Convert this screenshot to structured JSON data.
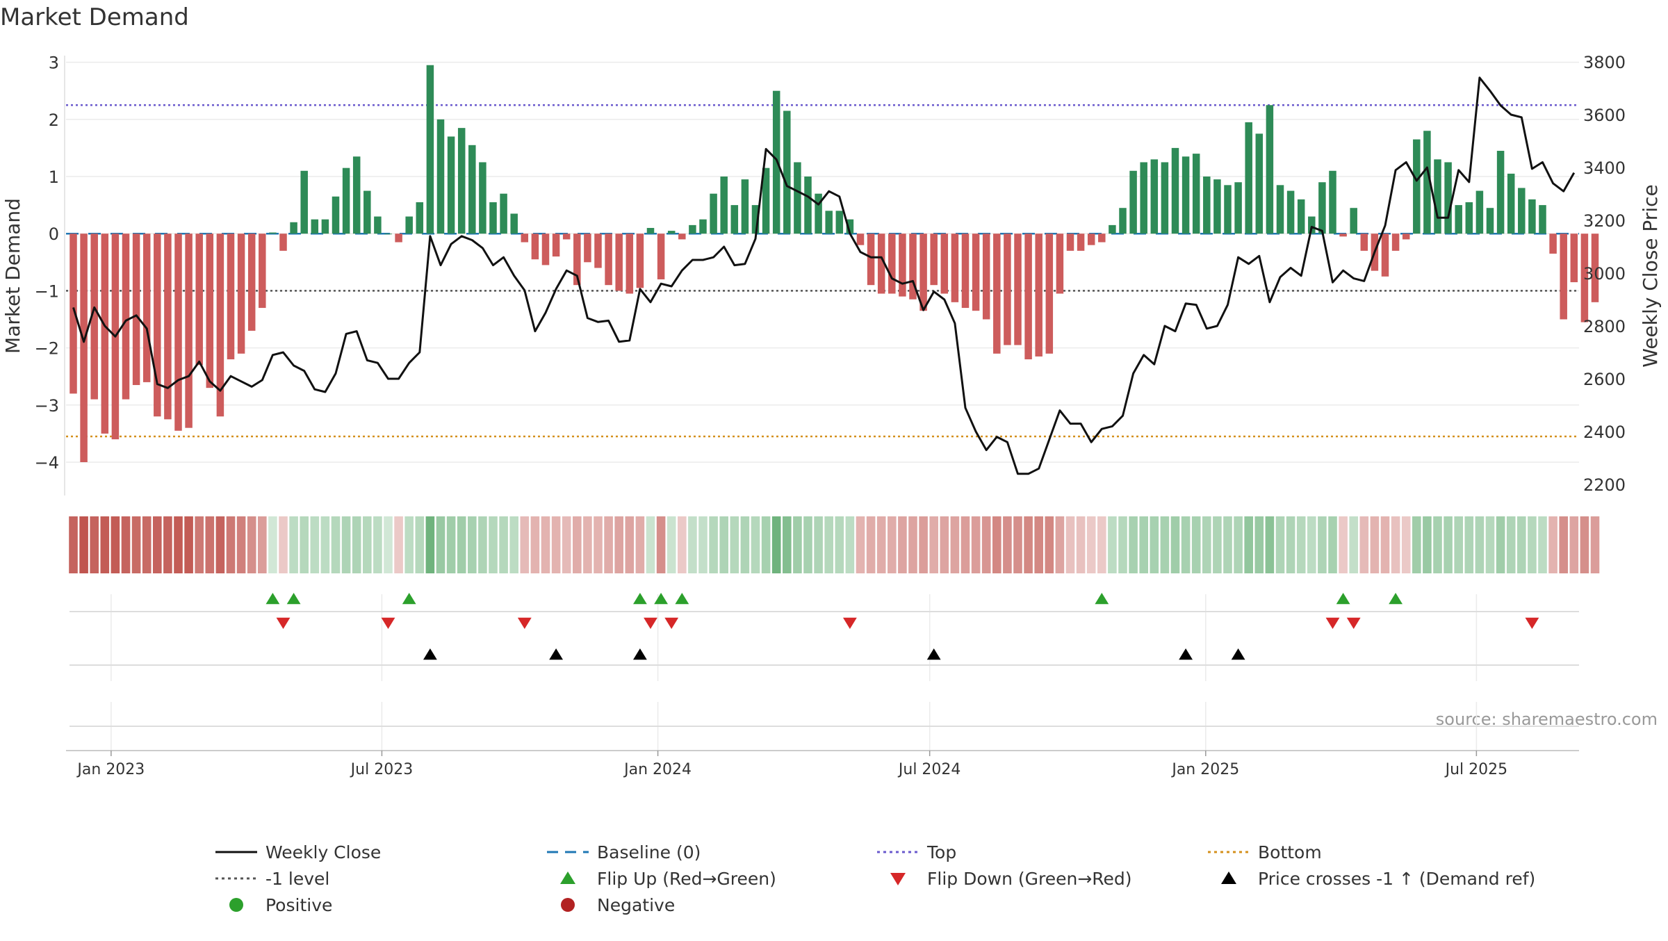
{
  "chart_data": {
    "type": "bar+line",
    "title": "Market Demand",
    "ylabel_left": "Market Demand",
    "ylabel_right": "Weekly Close Price",
    "ylim_left": [
      -4.2,
      3.3
    ],
    "ylim_right": [
      2130,
      3840
    ],
    "yticks_left": [
      -4,
      -3,
      -2,
      -1,
      0,
      1,
      2,
      3
    ],
    "yticks_right": [
      2200,
      2400,
      2600,
      2800,
      3000,
      3200,
      3400,
      3600,
      3800
    ],
    "x_dates": {
      "start": "2022-12-05",
      "weeks": 143
    },
    "x_ticks": [
      {
        "label": "Jan 2023",
        "week": 3.6
      },
      {
        "label": "Jul 2023",
        "week": 29.4
      },
      {
        "label": "Jan 2024",
        "week": 55.7
      },
      {
        "label": "Jul 2024",
        "week": 81.6
      },
      {
        "label": "Jan 2025",
        "week": 107.9
      },
      {
        "label": "Jul 2025",
        "week": 133.7
      }
    ],
    "reference_lines": {
      "top": 2.25,
      "bottom": -3.55,
      "minus_one": -1,
      "baseline": 0
    },
    "demand": [
      -2.8,
      -4,
      -2.9,
      -3.5,
      -3.6,
      -2.9,
      -2.65,
      -2.6,
      -3.2,
      -3.25,
      -3.45,
      -3.4,
      -2.3,
      -2.7,
      -3.2,
      -2.2,
      -2.1,
      -1.7,
      -1.3,
      0.02,
      -0.3,
      0.2,
      1.1,
      0.25,
      0.25,
      0.65,
      1.15,
      1.35,
      0.75,
      0.3,
      0,
      -0.15,
      0.3,
      0.55,
      2.95,
      2,
      1.7,
      1.85,
      1.55,
      1.25,
      0.55,
      0.7,
      0.35,
      -0.15,
      -0.45,
      -0.55,
      -0.4,
      -0.1,
      -0.9,
      -0.5,
      -0.6,
      -0.9,
      -1,
      -1.05,
      -0.95,
      0.1,
      -0.8,
      0.05,
      -0.1,
      0.15,
      0.25,
      0.7,
      1,
      0.5,
      0.95,
      0.5,
      1.15,
      2.5,
      2.15,
      1.25,
      1,
      0.7,
      0.4,
      0.4,
      0.25,
      -0.2,
      -0.9,
      -1.05,
      -1.05,
      -1.1,
      -1.15,
      -1.35,
      -0.9,
      -1.05,
      -1.2,
      -1.3,
      -1.35,
      -1.5,
      -2.1,
      -1.95,
      -1.95,
      -2.2,
      -2.15,
      -2.1,
      -1.05,
      -0.3,
      -0.3,
      -0.2,
      -0.15,
      0.15,
      0.45,
      1.1,
      1.25,
      1.3,
      1.25,
      1.5,
      1.35,
      1.4,
      1,
      0.95,
      0.85,
      0.9,
      1.95,
      1.75,
      2.25,
      0.85,
      0.75,
      0.6,
      0.3,
      0.9,
      1.1,
      -0.05,
      0.45,
      -0.3,
      -0.65,
      -0.75,
      -0.3,
      -0.1,
      1.65,
      1.8,
      1.3,
      1.25,
      0.5,
      0.55,
      0.75,
      0.45,
      1.45,
      1.05,
      0.8,
      0.6,
      0.5,
      -0.35,
      -1.5,
      -0.85,
      -1.55,
      -1.2
    ],
    "close": [
      2870,
      2740,
      2870,
      2800,
      2760,
      2820,
      2840,
      2790,
      2580,
      2565,
      2595,
      2610,
      2665,
      2590,
      2555,
      2610,
      2590,
      2570,
      2595,
      2690,
      2700,
      2650,
      2630,
      2560,
      2550,
      2620,
      2770,
      2780,
      2670,
      2660,
      2600,
      2600,
      2660,
      2700,
      3140,
      3030,
      3110,
      3140,
      3125,
      3095,
      3030,
      3060,
      2990,
      2935,
      2780,
      2850,
      2940,
      3010,
      2990,
      2830,
      2815,
      2820,
      2740,
      2745,
      2940,
      2890,
      2960,
      2950,
      3010,
      3050,
      3050,
      3060,
      3100,
      3030,
      3035,
      3130,
      3470,
      3430,
      3330,
      3310,
      3290,
      3260,
      3310,
      3290,
      3150,
      3080,
      3060,
      3060,
      2980,
      2960,
      2970,
      2860,
      2930,
      2900,
      2810,
      2490,
      2400,
      2330,
      2380,
      2360,
      2240,
      2240,
      2260,
      2370,
      2480,
      2430,
      2430,
      2360,
      2410,
      2420,
      2460,
      2620,
      2690,
      2655,
      2800,
      2780,
      2885,
      2880,
      2790,
      2800,
      2880,
      3060,
      3035,
      3065,
      2890,
      2985,
      3020,
      2990,
      3175,
      3160,
      2965,
      3010,
      2980,
      2970,
      3080,
      3180,
      3390,
      3420,
      3350,
      3400,
      3210,
      3210,
      3390,
      3345,
      3740,
      3690,
      3635,
      3600,
      3590,
      3395,
      3420,
      3340,
      3310,
      3380
    ],
    "color_strip": [
      0.9,
      1,
      0.9,
      0.95,
      0.95,
      0.9,
      0.85,
      0.85,
      0.9,
      0.9,
      0.95,
      0.95,
      0.75,
      0.8,
      0.9,
      0.75,
      0.7,
      0.6,
      0.5,
      0.15,
      0.2,
      0.3,
      0.35,
      0.3,
      0.3,
      0.35,
      0.4,
      0.4,
      0.35,
      0.3,
      0.15,
      0.2,
      0.3,
      0.35,
      0.85,
      0.55,
      0.5,
      0.5,
      0.45,
      0.4,
      0.35,
      0.35,
      0.3,
      0.3,
      0.35,
      0.35,
      0.35,
      0.3,
      0.4,
      0.35,
      0.35,
      0.4,
      0.45,
      0.45,
      0.4,
      0.2,
      0.6,
      0.2,
      0.2,
      0.25,
      0.25,
      0.35,
      0.4,
      0.35,
      0.4,
      0.35,
      0.45,
      0.85,
      0.7,
      0.5,
      0.45,
      0.4,
      0.35,
      0.35,
      0.3,
      0.35,
      0.4,
      0.4,
      0.4,
      0.45,
      0.45,
      0.5,
      0.4,
      0.45,
      0.45,
      0.5,
      0.5,
      0.55,
      0.65,
      0.6,
      0.6,
      0.65,
      0.65,
      0.65,
      0.45,
      0.25,
      0.25,
      0.2,
      0.2,
      0.3,
      0.35,
      0.45,
      0.45,
      0.45,
      0.45,
      0.5,
      0.45,
      0.45,
      0.4,
      0.4,
      0.4,
      0.4,
      0.6,
      0.55,
      0.65,
      0.4,
      0.4,
      0.35,
      0.3,
      0.4,
      0.45,
      0.2,
      0.25,
      0.3,
      0.35,
      0.35,
      0.25,
      0.2,
      0.5,
      0.55,
      0.45,
      0.45,
      0.4,
      0.4,
      0.4,
      0.35,
      0.5,
      0.4,
      0.4,
      0.35,
      0.3,
      0.35,
      0.6,
      0.45,
      0.6,
      0.5
    ],
    "flip_up_weeks": [
      19,
      21,
      32,
      54,
      56,
      58,
      98,
      121,
      126
    ],
    "flip_down_weeks": [
      20,
      30,
      43,
      55,
      57,
      74,
      120,
      122,
      139
    ],
    "price_cross_weeks": [
      34,
      46,
      54,
      82,
      106,
      111
    ],
    "colors": {
      "positive_bar": "#2e8b57",
      "negative_bar": "#cd5c5c",
      "close_line": "#111111",
      "baseline": "#1f77b4",
      "top_line": "#6a5acd",
      "bottom_line": "#d4901c",
      "minus_one_line": "#555555",
      "flip_up": "#2ca02c",
      "flip_down": "#d62728",
      "cross_marker": "#000000",
      "strip_green": "#5aa86a",
      "strip_red": "#c0554f"
    },
    "source": "source: sharemaestro.com",
    "legend": [
      {
        "key": "weekly_close",
        "label": "Weekly Close",
        "symbol": "line-solid",
        "color": "#111111"
      },
      {
        "key": "baseline",
        "label": "Baseline (0)",
        "symbol": "line-dashed",
        "color": "#1f77b4"
      },
      {
        "key": "top",
        "label": "Top",
        "symbol": "line-dotted",
        "color": "#6a5acd"
      },
      {
        "key": "bottom",
        "label": "Bottom",
        "symbol": "line-dotted",
        "color": "#d4901c"
      },
      {
        "key": "minus_one",
        "label": "-1 level",
        "symbol": "line-dotted",
        "color": "#555555"
      },
      {
        "key": "flip_up",
        "label": "Flip Up (Red→Green)",
        "symbol": "triangle-up",
        "color": "#2ca02c"
      },
      {
        "key": "flip_down",
        "label": "Flip Down (Green→Red)",
        "symbol": "triangle-down",
        "color": "#d62728"
      },
      {
        "key": "price_cross",
        "label": "Price crosses -1 ↑ (Demand ref)",
        "symbol": "triangle-up",
        "color": "#000000"
      },
      {
        "key": "positive",
        "label": "Positive",
        "symbol": "circle",
        "color": "#2ca02c"
      },
      {
        "key": "negative",
        "label": "Negative",
        "symbol": "circle",
        "color": "#b22222"
      }
    ]
  }
}
